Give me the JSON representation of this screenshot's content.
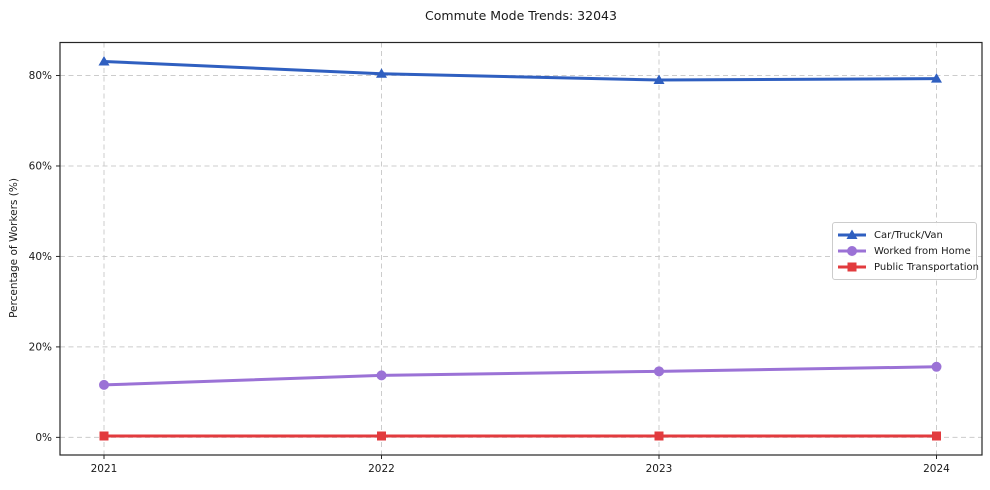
{
  "title": "Commute Mode Trends: 32043",
  "axes": {
    "ylabel": "Percentage of Workers (%)",
    "xlabel": "",
    "y_tick_labels": [
      "0%",
      "20%",
      "40%",
      "60%",
      "80%"
    ],
    "y_tick_values": [
      0,
      20,
      40,
      60,
      80
    ],
    "x_tick_labels": [
      "2021",
      "2022",
      "2023",
      "2024"
    ]
  },
  "chart_data": {
    "type": "line",
    "title": "Commute Mode Trends: 32043",
    "xlabel": "",
    "ylabel": "Percentage of Workers (%)",
    "categories": [
      "2021",
      "2022",
      "2023",
      "2024"
    ],
    "series": [
      {
        "name": "Car/Truck/Van",
        "marker": "triangle",
        "color": "#2f5fc0",
        "values": [
          83.1,
          80.4,
          79.0,
          79.3
        ]
      },
      {
        "name": "Worked from Home",
        "marker": "circle",
        "color": "#9b72d6",
        "values": [
          11.6,
          13.7,
          14.6,
          15.6
        ]
      },
      {
        "name": "Public Transportation",
        "marker": "square",
        "color": "#e23b3e",
        "values": [
          0.3,
          0.3,
          0.3,
          0.3
        ]
      }
    ],
    "ylim": [
      -3.9,
      87.3
    ],
    "grid": true,
    "grid_style": "dashed",
    "grid_color": "#cccccc",
    "spine_color": "#262626",
    "legend_position": "center-right"
  }
}
